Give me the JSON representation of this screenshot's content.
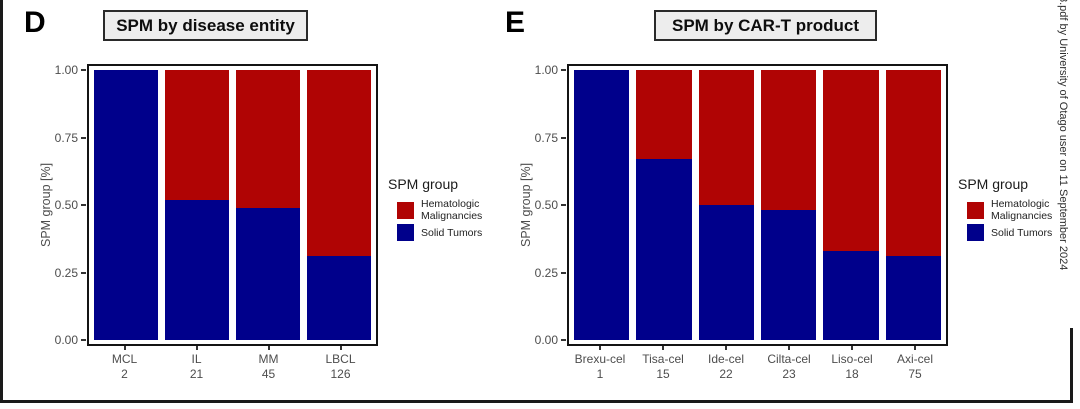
{
  "figure": {
    "watermark": "8.pdf by University of Otago user on 11 September 2024",
    "legend": {
      "title": "SPM group",
      "items": [
        {
          "label_line1": "Hematologic",
          "label_line2": "Malignancies",
          "color": "#B00404"
        },
        {
          "label_line1": "Solid Tumors",
          "label_line2": "",
          "color": "#00008B"
        }
      ]
    }
  },
  "chart_data": [
    {
      "type": "bar",
      "stacked": true,
      "panel_letter": "D",
      "title": "SPM by disease entity",
      "ylabel": "SPM group [%]",
      "ylim": [
        0,
        1
      ],
      "yticks": [
        1.0,
        0.75,
        0.5,
        0.25,
        0.0
      ],
      "categories": [
        "MCL",
        "IL",
        "MM",
        "LBCL"
      ],
      "counts": [
        2,
        21,
        45,
        126
      ],
      "series": [
        {
          "name": "Hematologic Malignancies",
          "color": "#B00404",
          "values": [
            0.0,
            0.48,
            0.51,
            0.69
          ]
        },
        {
          "name": "Solid Tumors",
          "color": "#00008B",
          "values": [
            1.0,
            0.52,
            0.49,
            0.31
          ]
        }
      ],
      "legend_title": "SPM group",
      "legend_position": "right",
      "grid": false
    },
    {
      "type": "bar",
      "stacked": true,
      "panel_letter": "E",
      "title": "SPM by CAR-T product",
      "ylabel": "SPM group [%]",
      "ylim": [
        0,
        1
      ],
      "yticks": [
        1.0,
        0.75,
        0.5,
        0.25,
        0.0
      ],
      "categories": [
        "Brexu-cel",
        "Tisa-cel",
        "Ide-cel",
        "Cilta-cel",
        "Liso-cel",
        "Axi-cel"
      ],
      "counts": [
        1,
        15,
        22,
        23,
        18,
        75
      ],
      "series": [
        {
          "name": "Hematologic Malignancies",
          "color": "#B00404",
          "values": [
            0.0,
            0.33,
            0.5,
            0.52,
            0.67,
            0.69
          ]
        },
        {
          "name": "Solid Tumors",
          "color": "#00008B",
          "values": [
            1.0,
            0.67,
            0.5,
            0.48,
            0.33,
            0.31
          ]
        }
      ],
      "legend_title": "SPM group",
      "legend_position": "right",
      "grid": false
    }
  ]
}
